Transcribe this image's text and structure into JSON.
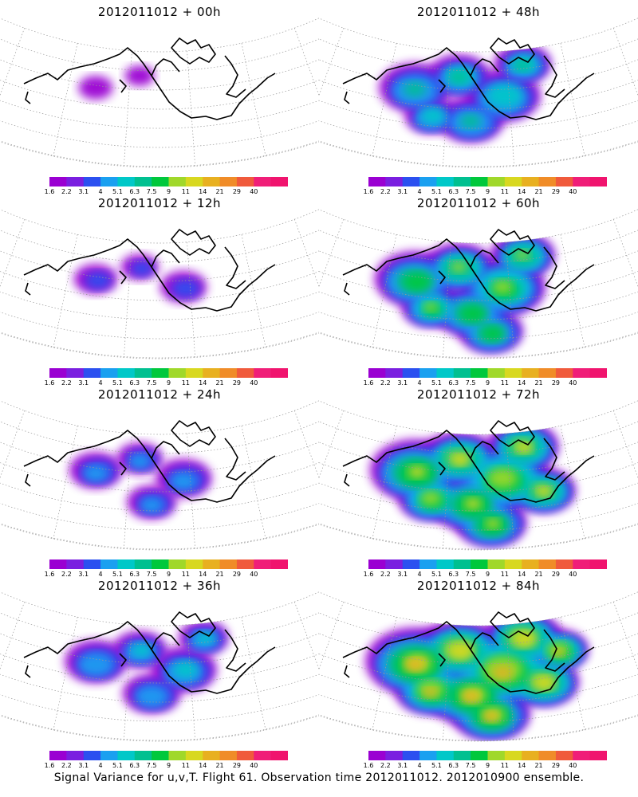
{
  "panels": [
    {
      "title": "2012011012 + 00h",
      "intensity": 0
    },
    {
      "title": "2012011012 + 48h",
      "intensity": 4
    },
    {
      "title": "2012011012 + 12h",
      "intensity": 1
    },
    {
      "title": "2012011012 + 60h",
      "intensity": 5
    },
    {
      "title": "2012011012 + 24h",
      "intensity": 2
    },
    {
      "title": "2012011012 + 72h",
      "intensity": 6
    },
    {
      "title": "2012011012 + 36h",
      "intensity": 3
    },
    {
      "title": "2012011012 + 84h",
      "intensity": 7
    }
  ],
  "colorbar": {
    "labels": [
      "1.6",
      "2.2",
      "3.1",
      "4",
      "5.1",
      "6.3",
      "7.5",
      "9",
      "11",
      "14",
      "21",
      "29",
      "40"
    ],
    "colors": [
      "#9a00d2",
      "#7a1fe0",
      "#2b50f0",
      "#1aa0f0",
      "#00c8c8",
      "#00c090",
      "#00c83c",
      "#a0d82a",
      "#d8d820",
      "#e8b020",
      "#f08c28",
      "#f05a3c",
      "#f01e78",
      "#f0146e"
    ]
  },
  "caption": "Signal Variance for u,v,T. Flight 61. Observation time 2012011012. 2012010900 ensemble."
}
